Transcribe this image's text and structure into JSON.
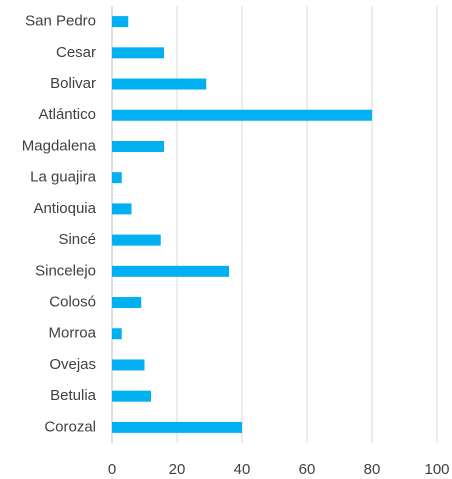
{
  "chart_data": {
    "type": "bar",
    "orientation": "horizontal",
    "categories": [
      "San Pedro",
      "Cesar",
      "Bolivar",
      "Atlántico",
      "Magdalena",
      "La guajira",
      "Antioquia",
      "Sincé",
      "Sincelejo",
      "Colosó",
      "Morroa",
      "Ovejas",
      "Betulia",
      "Corozal"
    ],
    "values": [
      5,
      16,
      29,
      80,
      16,
      3,
      6,
      15,
      36,
      9,
      3,
      10,
      12,
      40
    ],
    "color": "#00b0f0",
    "xlim": [
      0,
      100
    ],
    "xticks": [
      0,
      20,
      40,
      60,
      80,
      100
    ],
    "grid": true
  }
}
